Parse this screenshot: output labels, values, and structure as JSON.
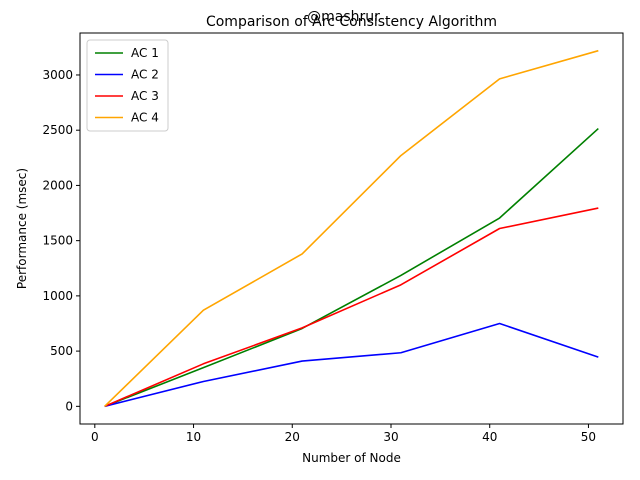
{
  "chart_data": {
    "type": "line",
    "title": "Comparison of Arc Consistency Algorithm",
    "watermark": "@mashrur",
    "xlabel": "Number of Node",
    "ylabel": "Performance (msec)",
    "x": [
      1,
      11,
      21,
      31,
      41,
      51
    ],
    "xlim": [
      -1.5,
      53.5
    ],
    "ylim": [
      -160,
      3380
    ],
    "xticks": [
      0,
      10,
      20,
      30,
      40,
      50
    ],
    "yticks": [
      0,
      500,
      1000,
      1500,
      2000,
      2500,
      3000
    ],
    "grid": false,
    "legend_position": "upper left",
    "series": [
      {
        "name": "AC 1",
        "color": "#008000",
        "values": [
          0,
          350,
          705,
          1185,
          1705,
          2515
        ]
      },
      {
        "name": "AC 2",
        "color": "#0000ff",
        "values": [
          0,
          225,
          410,
          485,
          750,
          445
        ]
      },
      {
        "name": "AC 3",
        "color": "#ff0000",
        "values": [
          0,
          385,
          710,
          1100,
          1610,
          1795
        ]
      },
      {
        "name": "AC 4",
        "color": "#ffa500",
        "values": [
          0,
          870,
          1380,
          2270,
          2965,
          3220
        ]
      }
    ]
  }
}
